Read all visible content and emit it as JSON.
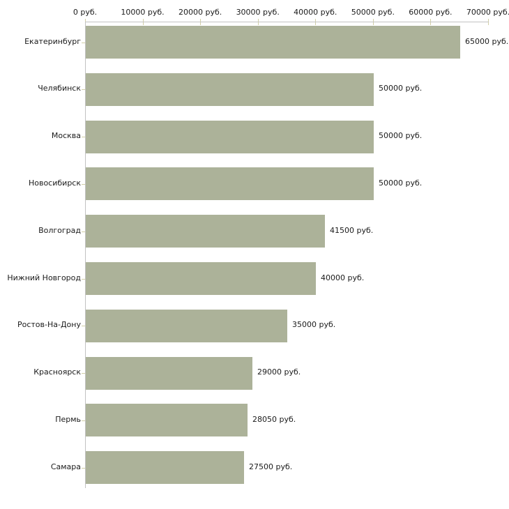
{
  "chart_data": {
    "type": "bar",
    "orientation": "horizontal",
    "title": "",
    "xlabel": "",
    "ylabel": "",
    "grid": false,
    "legend": false,
    "categories": [
      "Екатеринбург",
      "Челябинск",
      "Москва",
      "Новосибирск",
      "Волгоград",
      "Нижний Новгород",
      "Ростов-На-Дону",
      "Красноярск",
      "Пермь",
      "Самара"
    ],
    "values": [
      65000,
      50000,
      50000,
      50000,
      41500,
      40000,
      35000,
      29000,
      28050,
      27500
    ],
    "value_labels": [
      "65000 руб.",
      "50000 руб.",
      "50000 руб.",
      "50000 руб.",
      "41500 руб.",
      "40000 руб.",
      "35000 руб.",
      "29000 руб.",
      "28050 руб.",
      "27500 руб."
    ],
    "x_axis": {
      "min": 0,
      "max": 70000,
      "ticks": [
        0,
        10000,
        20000,
        30000,
        40000,
        50000,
        60000,
        70000
      ],
      "tick_labels": [
        "0 руб.",
        "10000 руб.",
        "20000 руб.",
        "30000 руб.",
        "40000 руб.",
        "50000 руб.",
        "60000 руб.",
        "70000 руб."
      ]
    },
    "colors": {
      "bar": "#acb299",
      "axis": "#c2c2c2",
      "tick": "#d2cfa6",
      "text": "#1a1a1a"
    }
  }
}
